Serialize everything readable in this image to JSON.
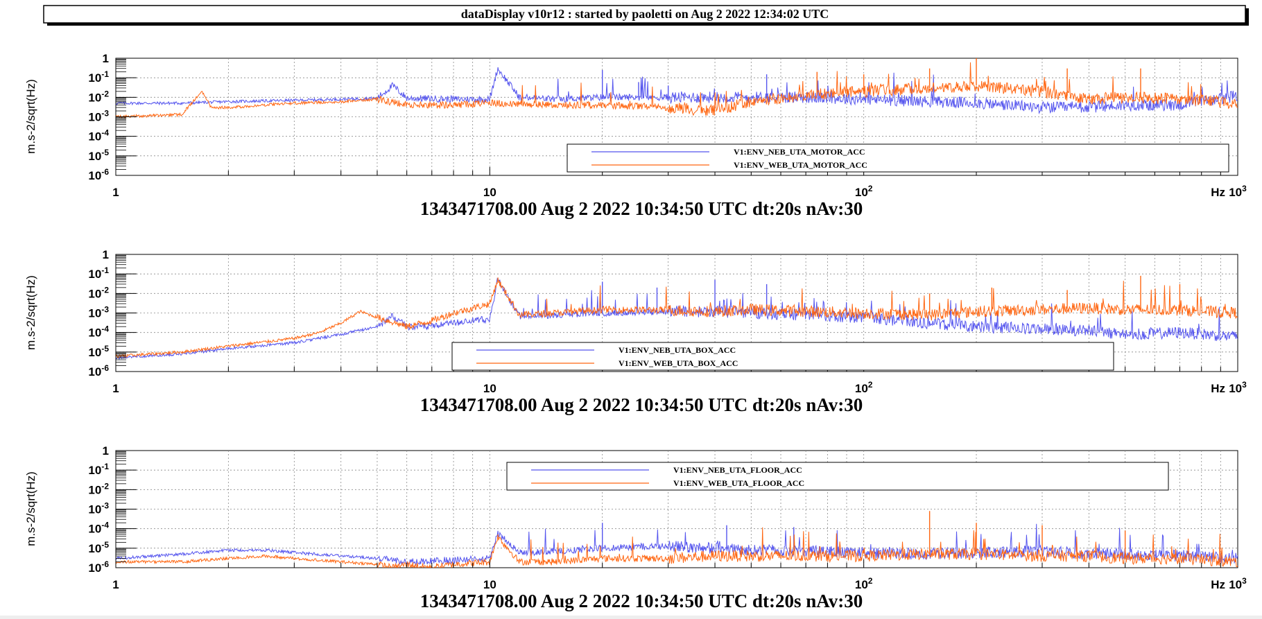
{
  "window": {
    "title": "dataDisplay v10r12 : started by paoletti on Aug  2 2022 12:34:02 UTC"
  },
  "colors": {
    "series_neb": "#5555ee",
    "series_web": "#ff6611",
    "grid": "#888888"
  },
  "chart_data": [
    {
      "type": "line",
      "xscale": "log",
      "yscale": "log",
      "xlim": [
        1,
        1000
      ],
      "ylim": [
        1e-06,
        1
      ],
      "grid": true,
      "legend_position": "lower-right",
      "ylabel": "m.s-2/sqrt(Hz)",
      "xlabel": "1343471708.00 Aug 2 2022 10:34:50 UTC dt:20s nAv:30",
      "x_unit": "Hz",
      "x_ticks": [
        "1",
        "10",
        "10^2",
        "10^3"
      ],
      "y_ticks": [
        "1",
        "10^-1",
        "10^-2",
        "10^-3",
        "10^-4",
        "10^-5",
        "10^-6"
      ],
      "series": [
        {
          "name": "V1:ENV_NEB_UTA_MOTOR_ACC",
          "color": "#5555ee",
          "x": [
            1,
            1.5,
            2,
            3,
            4,
            5,
            5.5,
            6,
            8,
            10,
            10.5,
            12,
            15,
            20,
            30,
            40,
            50,
            70,
            100,
            150,
            200,
            300,
            400,
            500,
            700,
            1000
          ],
          "y": [
            0.005,
            0.005,
            0.006,
            0.007,
            0.008,
            0.009,
            0.04,
            0.009,
            0.008,
            0.008,
            0.3,
            0.01,
            0.008,
            0.01,
            0.01,
            0.01,
            0.01,
            0.01,
            0.008,
            0.006,
            0.005,
            0.003,
            0.003,
            0.004,
            0.004,
            0.012
          ],
          "spikes": [
            [
              10.5,
              0.3
            ],
            [
              20,
              0.25
            ],
            [
              25,
              0.06
            ],
            [
              30,
              0.04
            ],
            [
              55,
              0.15
            ]
          ]
        },
        {
          "name": "V1:ENV_WEB_UTA_MOTOR_ACC",
          "color": "#ff6611",
          "x": [
            1,
            1.5,
            1.7,
            1.8,
            2,
            3,
            4,
            5,
            6,
            8,
            10,
            15,
            20,
            30,
            40,
            50,
            70,
            100,
            150,
            200,
            300,
            400,
            500,
            700,
            1000
          ],
          "y": [
            0.001,
            0.0013,
            0.02,
            0.003,
            0.003,
            0.005,
            0.006,
            0.008,
            0.004,
            0.004,
            0.005,
            0.004,
            0.004,
            0.003,
            0.002,
            0.006,
            0.012,
            0.02,
            0.03,
            0.04,
            0.02,
            0.008,
            0.01,
            0.008,
            0.005
          ],
          "spikes": [
            [
              75,
              0.2
            ],
            [
              100,
              0.15
            ],
            [
              150,
              0.3
            ],
            [
              200,
              1.2
            ],
            [
              350,
              0.3
            ],
            [
              550,
              0.3
            ]
          ]
        }
      ]
    },
    {
      "type": "line",
      "xscale": "log",
      "yscale": "log",
      "xlim": [
        1,
        1000
      ],
      "ylim": [
        1e-06,
        1
      ],
      "grid": true,
      "legend_position": "lower-center",
      "ylabel": "m.s-2/sqrt(Hz)",
      "xlabel": "1343471708.00 Aug 2 2022 10:34:50 UTC dt:20s nAv:30",
      "x_unit": "Hz",
      "x_ticks": [
        "1",
        "10",
        "10^2",
        "10^3"
      ],
      "y_ticks": [
        "1",
        "10^-1",
        "10^-2",
        "10^-3",
        "10^-4",
        "10^-5",
        "10^-6"
      ],
      "series": [
        {
          "name": "V1:ENV_NEB_UTA_BOX_ACC",
          "color": "#5555ee",
          "x": [
            1,
            1.5,
            2,
            3,
            4,
            5,
            5.5,
            6,
            7,
            8,
            10,
            10.5,
            12,
            15,
            20,
            30,
            40,
            50,
            70,
            100,
            150,
            200,
            300,
            400,
            500,
            700,
            1000
          ],
          "y": [
            5e-06,
            8e-06,
            1.5e-05,
            3e-05,
            8e-05,
            0.0002,
            0.0007,
            0.0002,
            0.0002,
            0.0003,
            0.0005,
            0.05,
            0.0007,
            0.0008,
            0.001,
            0.0012,
            0.0012,
            0.001,
            0.0008,
            0.0006,
            0.0003,
            0.0002,
            0.00015,
            0.00012,
            8e-05,
            0.0001,
            6e-05
          ],
          "spikes": [
            [
              20,
              0.04
            ],
            [
              28,
              0.02
            ],
            [
              40,
              0.05
            ],
            [
              55,
              0.03
            ]
          ]
        },
        {
          "name": "V1:ENV_WEB_UTA_BOX_ACC",
          "color": "#ff6611",
          "x": [
            1,
            1.5,
            2,
            3,
            3.5,
            4,
            4.5,
            5,
            6,
            7,
            8,
            10,
            10.5,
            12,
            15,
            20,
            30,
            40,
            50,
            70,
            100,
            150,
            200,
            300,
            400,
            500,
            700,
            1000
          ],
          "y": [
            6e-06,
            1e-05,
            2e-05,
            5e-05,
            0.0001,
            0.0003,
            0.0012,
            0.0006,
            0.0002,
            0.0004,
            0.001,
            0.003,
            0.05,
            0.0008,
            0.001,
            0.0015,
            0.0014,
            0.0012,
            0.0015,
            0.0012,
            0.001,
            0.0008,
            0.0012,
            0.0015,
            0.0018,
            0.0015,
            0.0014,
            0.001
          ],
          "spikes": [
            [
              150,
              0.01
            ],
            [
              220,
              0.02
            ],
            [
              350,
              0.015
            ],
            [
              550,
              0.08
            ],
            [
              700,
              0.03
            ]
          ]
        }
      ]
    },
    {
      "type": "line",
      "xscale": "log",
      "yscale": "log",
      "xlim": [
        1,
        1000
      ],
      "ylim": [
        1e-06,
        1
      ],
      "grid": true,
      "legend_position": "top-center",
      "ylabel": "m.s-2/sqrt(Hz)",
      "xlabel": "1343471708.00 Aug 2 2022 10:34:50 UTC dt:20s nAv:30",
      "x_unit": "Hz",
      "x_ticks": [
        "1",
        "10",
        "10^2",
        "10^3"
      ],
      "y_ticks": [
        "1",
        "10^-1",
        "10^-2",
        "10^-3",
        "10^-4",
        "10^-5",
        "10^-6"
      ],
      "series": [
        {
          "name": "V1:ENV_NEB_UTA_FLOOR_ACC",
          "color": "#5555ee",
          "x": [
            1,
            1.5,
            2,
            2.5,
            3,
            4,
            5,
            6,
            8,
            10,
            10.5,
            12,
            15,
            20,
            25,
            30,
            40,
            50,
            70,
            100,
            150,
            200,
            300,
            400,
            500,
            700,
            1000
          ],
          "y": [
            3e-06,
            5e-06,
            8e-06,
            8e-06,
            6e-06,
            4e-06,
            3e-06,
            2e-06,
            2.5e-06,
            3e-06,
            6e-05,
            6e-06,
            7e-06,
            1e-05,
            1.2e-05,
            1.2e-05,
            1e-05,
            8e-06,
            7e-06,
            6e-06,
            5e-06,
            6e-06,
            7e-06,
            5e-06,
            5e-06,
            4e-06,
            3e-06
          ],
          "spikes": [
            [
              20,
              0.0002
            ],
            [
              43,
              0.00015
            ],
            [
              65,
              0.00012
            ]
          ]
        },
        {
          "name": "V1:ENV_WEB_UTA_FLOOR_ACC",
          "color": "#ff6611",
          "x": [
            1,
            1.5,
            2,
            2.5,
            3,
            4,
            5,
            5.5,
            6,
            7,
            8,
            10,
            10.5,
            12,
            15,
            20,
            30,
            40,
            50,
            70,
            100,
            150,
            200,
            300,
            400,
            500,
            700,
            1000
          ],
          "y": [
            2e-06,
            2e-06,
            3e-06,
            4e-06,
            3e-06,
            2e-06,
            1.5e-06,
            1e-06,
            1.5e-06,
            1e-06,
            1.5e-06,
            2e-06,
            4e-05,
            2e-06,
            2e-06,
            3e-06,
            3e-06,
            4e-06,
            4e-06,
            4e-06,
            4e-06,
            5e-06,
            5e-06,
            4e-06,
            4e-06,
            3e-06,
            3e-06,
            2e-06
          ],
          "spikes": [
            [
              150,
              0.0008
            ],
            [
              200,
              0.0002
            ],
            [
              300,
              0.00015
            ],
            [
              500,
              8e-05
            ]
          ]
        }
      ]
    }
  ]
}
